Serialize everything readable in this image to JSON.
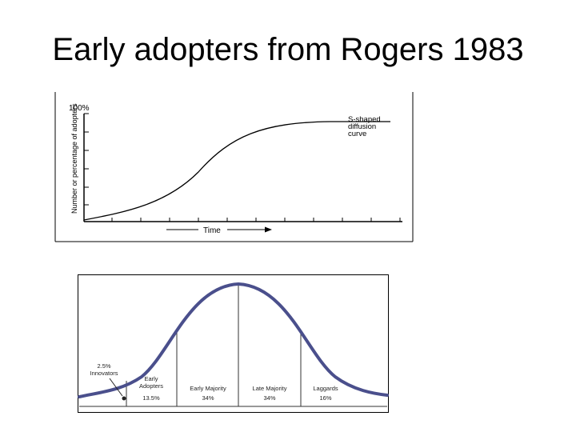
{
  "slide": {
    "title": "Early adopters from Rogers 1983"
  },
  "s_curve": {
    "y_top_label": "100%",
    "ylabel": "Number or percentage of adopters",
    "xlabel": "Time",
    "curve_label_line1": "S-shaped",
    "curve_label_line2": "diffusion",
    "curve_label_line3": "curve"
  },
  "bell_curve": {
    "segments": [
      {
        "name": "Innovators",
        "percent": "2.5%"
      },
      {
        "name": "Early Adopters",
        "name_line1": "Early",
        "name_line2": "Adopters",
        "percent": "13.5%"
      },
      {
        "name": "Early Majority",
        "percent": "34%"
      },
      {
        "name": "Late Majority",
        "percent": "34%"
      },
      {
        "name": "Laggards",
        "percent": "16%"
      }
    ],
    "curve_color": "#4a4f8c"
  }
}
